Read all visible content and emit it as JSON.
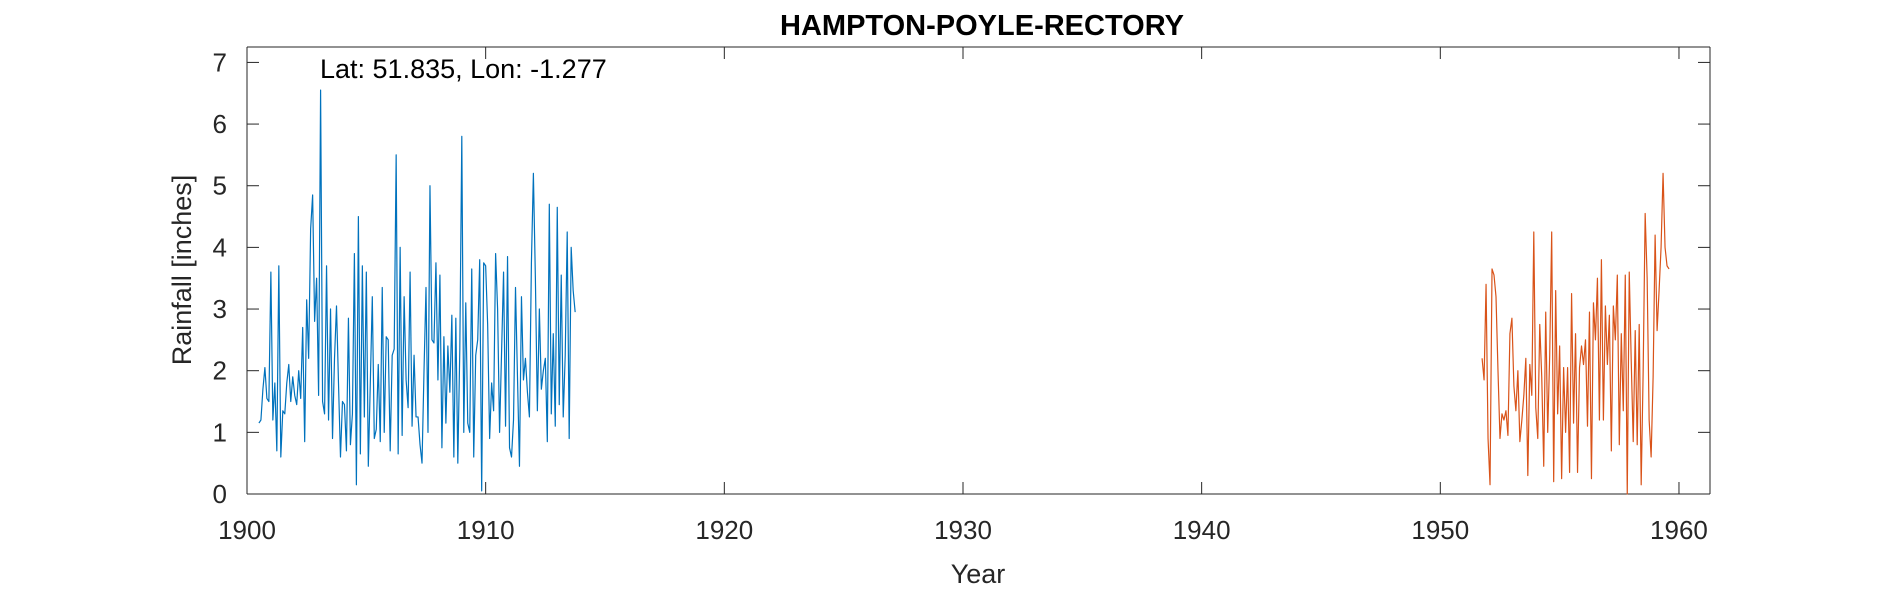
{
  "chart_data": {
    "type": "line",
    "title": "HAMPTON-POYLE-RECTORY",
    "annotation": "Lat: 51.835, Lon: -1.277",
    "xlabel": "Year",
    "ylabel": "Rainfall [inches]",
    "xlim": [
      1900,
      1961.3
    ],
    "ylim": [
      0,
      7.25
    ],
    "xticks": [
      1900,
      1910,
      1920,
      1930,
      1940,
      1950,
      1960
    ],
    "yticks": [
      0,
      1,
      2,
      3,
      4,
      5,
      6,
      7
    ],
    "grid": false,
    "series": [
      {
        "color": "#0072BD",
        "x_start": 1900.5,
        "x_step": 0.0833333,
        "values": [
          1.15,
          1.2,
          1.7,
          2.05,
          1.55,
          1.5,
          3.6,
          1.2,
          1.8,
          0.7,
          3.7,
          0.6,
          1.35,
          1.3,
          1.8,
          2.1,
          1.5,
          1.9,
          1.6,
          1.45,
          2.0,
          1.55,
          2.7,
          0.85,
          3.15,
          2.2,
          4.3,
          4.85,
          2.8,
          3.5,
          1.6,
          6.55,
          1.5,
          1.3,
          3.7,
          1.2,
          3.0,
          0.9,
          2.2,
          3.05,
          1.8,
          0.6,
          1.5,
          1.45,
          0.7,
          2.85,
          0.8,
          1.3,
          3.9,
          0.15,
          4.5,
          0.65,
          3.7,
          1.25,
          3.6,
          0.45,
          1.8,
          3.2,
          0.9,
          1.05,
          2.1,
          0.85,
          3.35,
          1.0,
          2.55,
          2.5,
          0.7,
          2.25,
          2.35,
          5.5,
          0.65,
          4.0,
          0.95,
          3.2,
          1.85,
          1.4,
          3.6,
          1.1,
          2.25,
          1.25,
          1.25,
          0.8,
          0.5,
          2.0,
          3.35,
          1.0,
          5.0,
          2.5,
          2.45,
          3.75,
          1.85,
          3.55,
          0.75,
          2.55,
          1.15,
          2.4,
          1.65,
          2.9,
          0.6,
          2.85,
          0.5,
          2.35,
          5.8,
          1.0,
          3.1,
          1.15,
          1.0,
          3.65,
          0.6,
          2.25,
          2.5,
          3.8,
          0.05,
          3.75,
          3.7,
          2.75,
          0.9,
          1.8,
          1.35,
          3.9,
          3.0,
          1.0,
          2.3,
          3.6,
          1.1,
          3.85,
          0.75,
          0.6,
          1.2,
          3.35,
          1.9,
          0.45,
          3.2,
          1.85,
          2.2,
          1.65,
          1.25,
          3.75,
          5.2,
          3.5,
          1.35,
          3.0,
          1.7,
          2.0,
          2.2,
          0.85,
          4.7,
          1.3,
          2.6,
          1.1,
          4.65,
          1.45,
          3.55,
          1.25,
          2.25,
          4.25,
          0.9,
          4.0,
          3.3,
          2.95
        ]
      },
      {
        "color": "#D95319",
        "x_start": 1951.75,
        "x_step": 0.0833333,
        "values": [
          2.2,
          1.85,
          3.4,
          0.9,
          0.15,
          3.65,
          3.55,
          3.2,
          2.0,
          0.9,
          1.3,
          1.2,
          1.35,
          0.95,
          2.6,
          2.85,
          1.75,
          1.35,
          2.0,
          0.85,
          1.2,
          1.6,
          2.2,
          0.3,
          2.1,
          1.6,
          4.25,
          1.4,
          0.9,
          2.75,
          1.9,
          0.45,
          2.95,
          1.0,
          2.25,
          4.25,
          0.2,
          3.3,
          1.3,
          2.4,
          0.25,
          2.05,
          1.0,
          2.05,
          0.35,
          3.25,
          1.15,
          2.6,
          0.35,
          2.05,
          2.4,
          2.1,
          2.5,
          1.1,
          2.95,
          0.25,
          3.1,
          2.5,
          3.5,
          1.2,
          3.8,
          1.2,
          3.05,
          2.1,
          2.9,
          0.7,
          3.05,
          2.5,
          3.55,
          0.8,
          2.6,
          1.35,
          3.55,
          0.0,
          3.6,
          2.15,
          0.85,
          2.65,
          0.8,
          2.75,
          0.15,
          2.0,
          4.55,
          3.5,
          1.2,
          0.6,
          1.9,
          4.2,
          2.65,
          3.3,
          4.0,
          5.2,
          4.0,
          3.7,
          3.65
        ]
      }
    ]
  }
}
